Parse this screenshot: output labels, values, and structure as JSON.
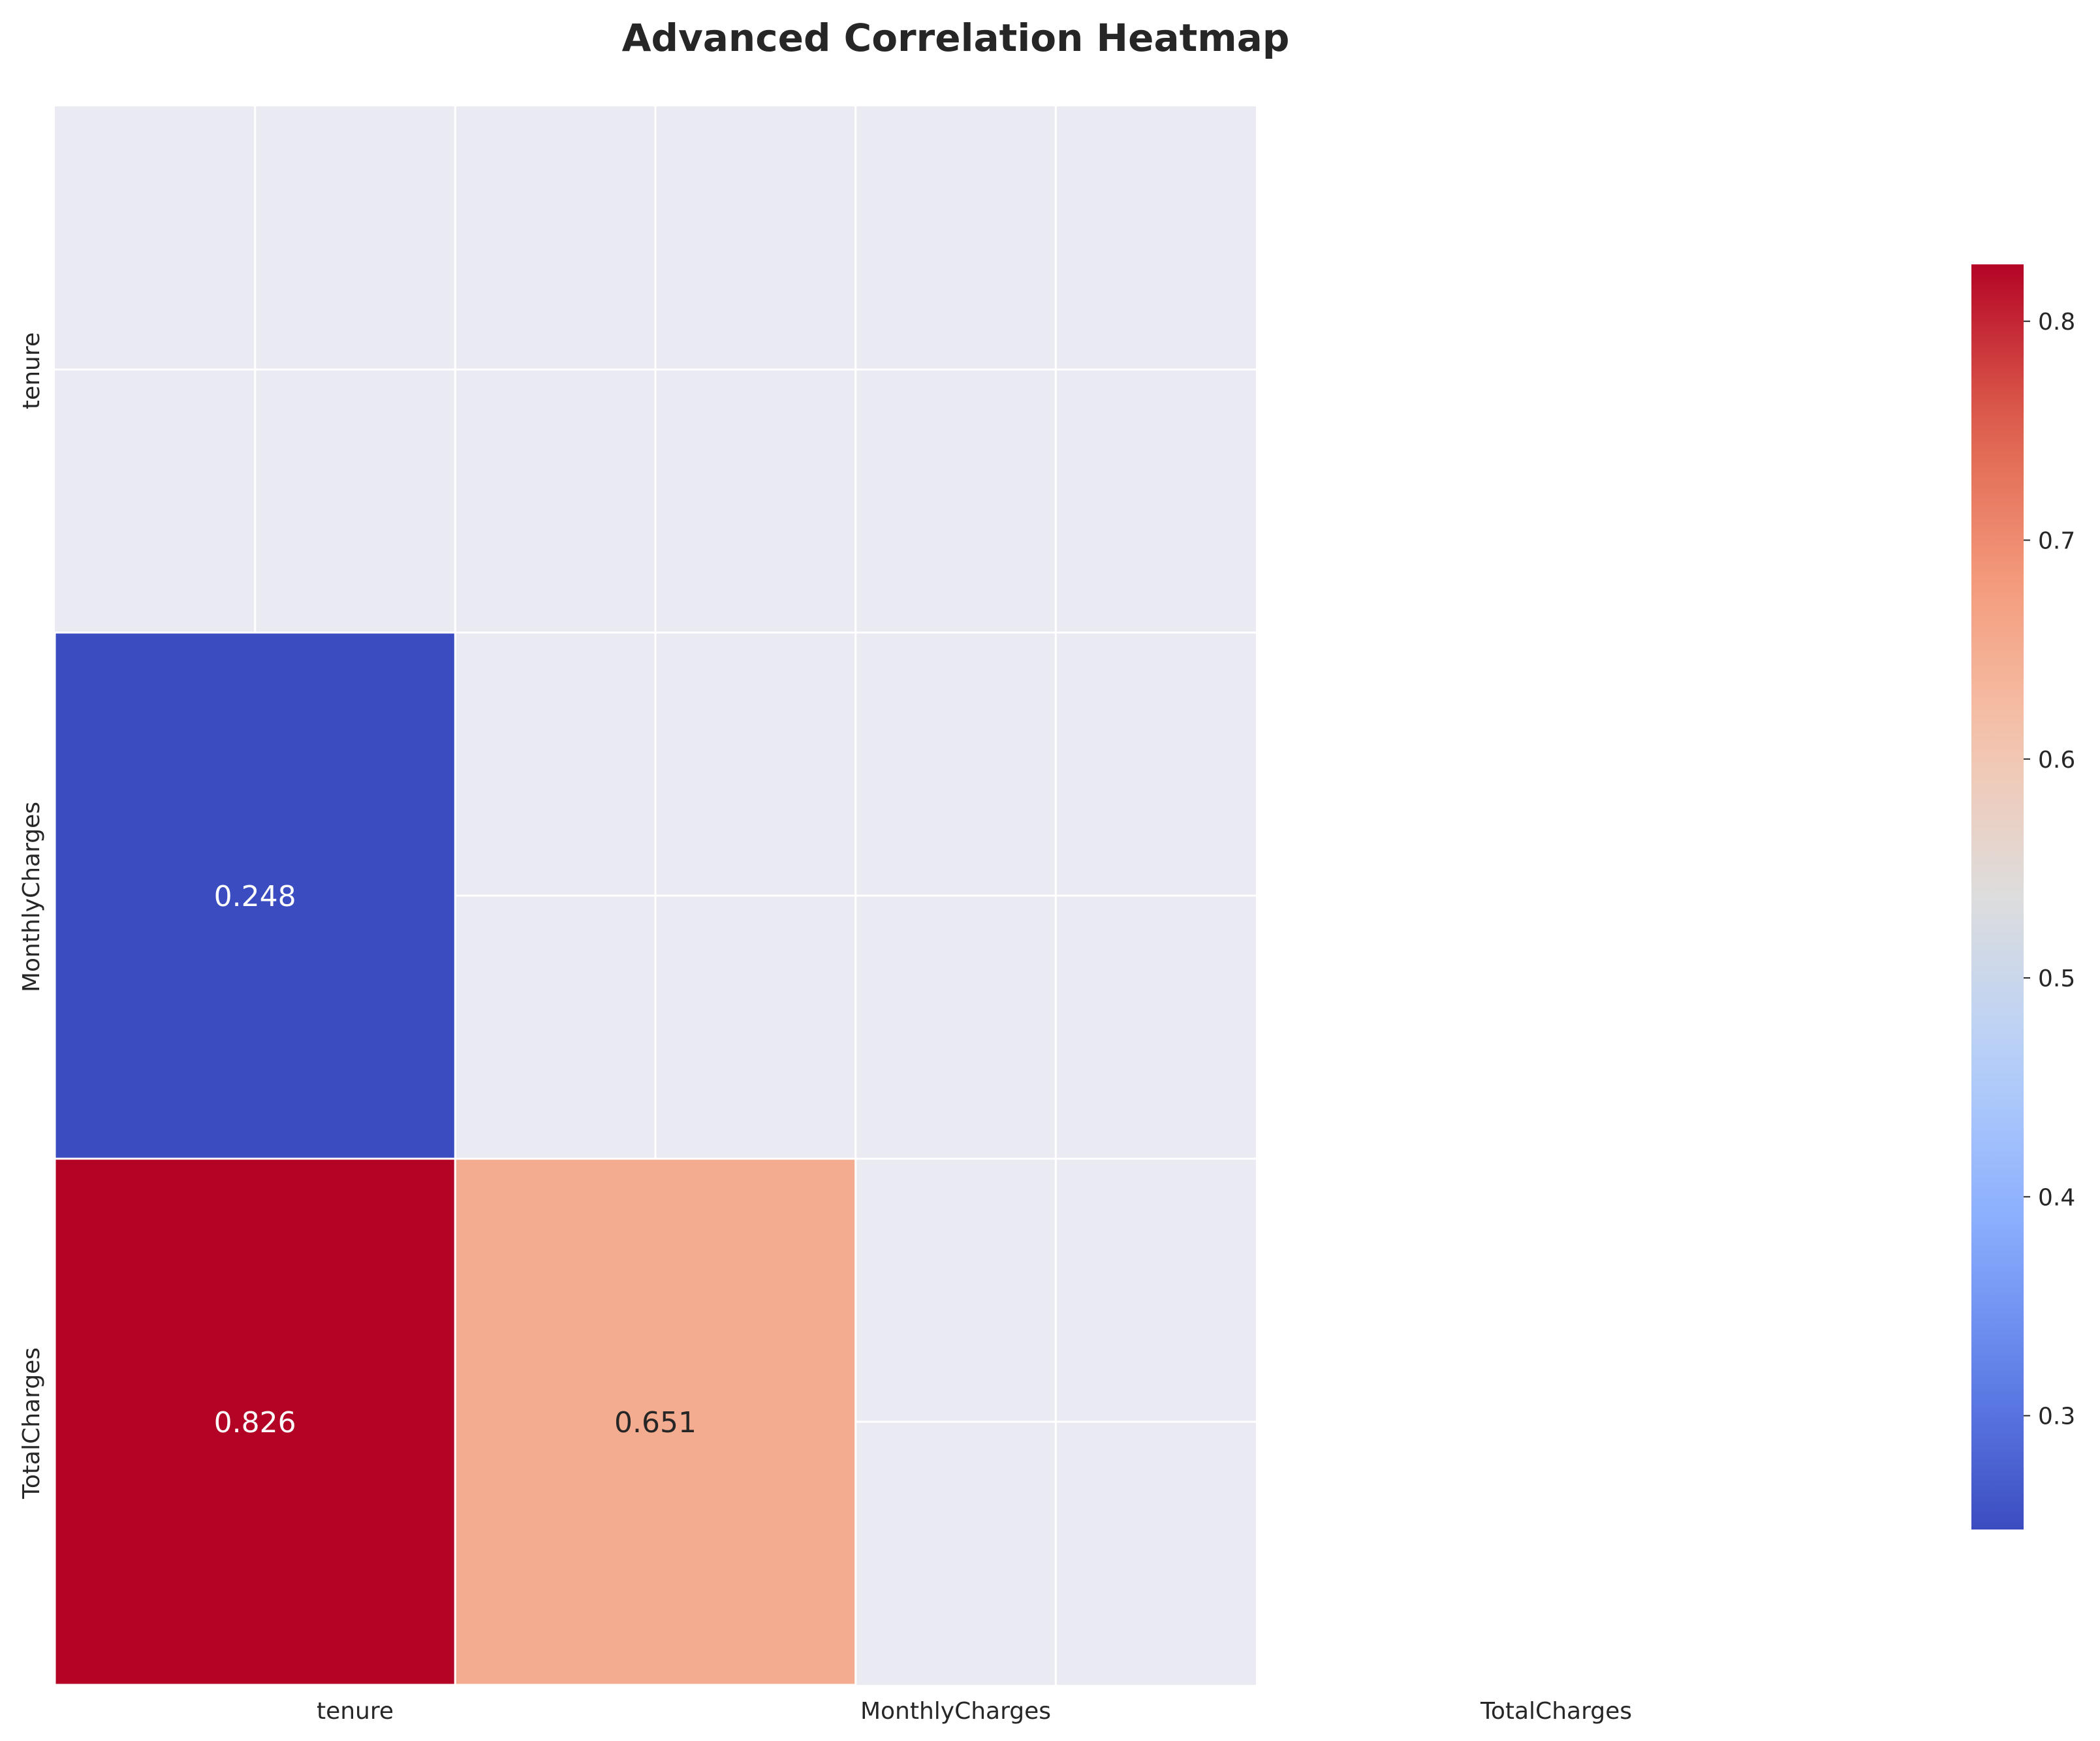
{
  "chart_data": {
    "type": "heatmap",
    "title": "Advanced Correlation Heatmap",
    "row_labels": [
      "tenure",
      "MonthlyCharges",
      "TotalCharges"
    ],
    "col_labels": [
      "tenure",
      "MonthlyCharges",
      "TotalCharges"
    ],
    "masked": "upper-triangle-including-diagonal",
    "cells": [
      {
        "row": "MonthlyCharges",
        "col": "tenure",
        "value": 0.248,
        "label": "0.248"
      },
      {
        "row": "TotalCharges",
        "col": "tenure",
        "value": 0.826,
        "label": "0.826"
      },
      {
        "row": "TotalCharges",
        "col": "MonthlyCharges",
        "value": 0.651,
        "label": "0.651"
      }
    ],
    "colormap": "coolwarm",
    "colorbar": {
      "range": [
        0.248,
        0.826
      ],
      "ticks": [
        0.3,
        0.4,
        0.5,
        0.6,
        0.7,
        0.8
      ],
      "tick_labels": [
        "0.3",
        "0.4",
        "0.5",
        "0.6",
        "0.7",
        "0.8"
      ]
    },
    "grid": true,
    "colors": {
      "background": "#eaeaf2",
      "grid": "#ffffff",
      "low": "#3b4cc0",
      "high": "#b40426"
    }
  }
}
